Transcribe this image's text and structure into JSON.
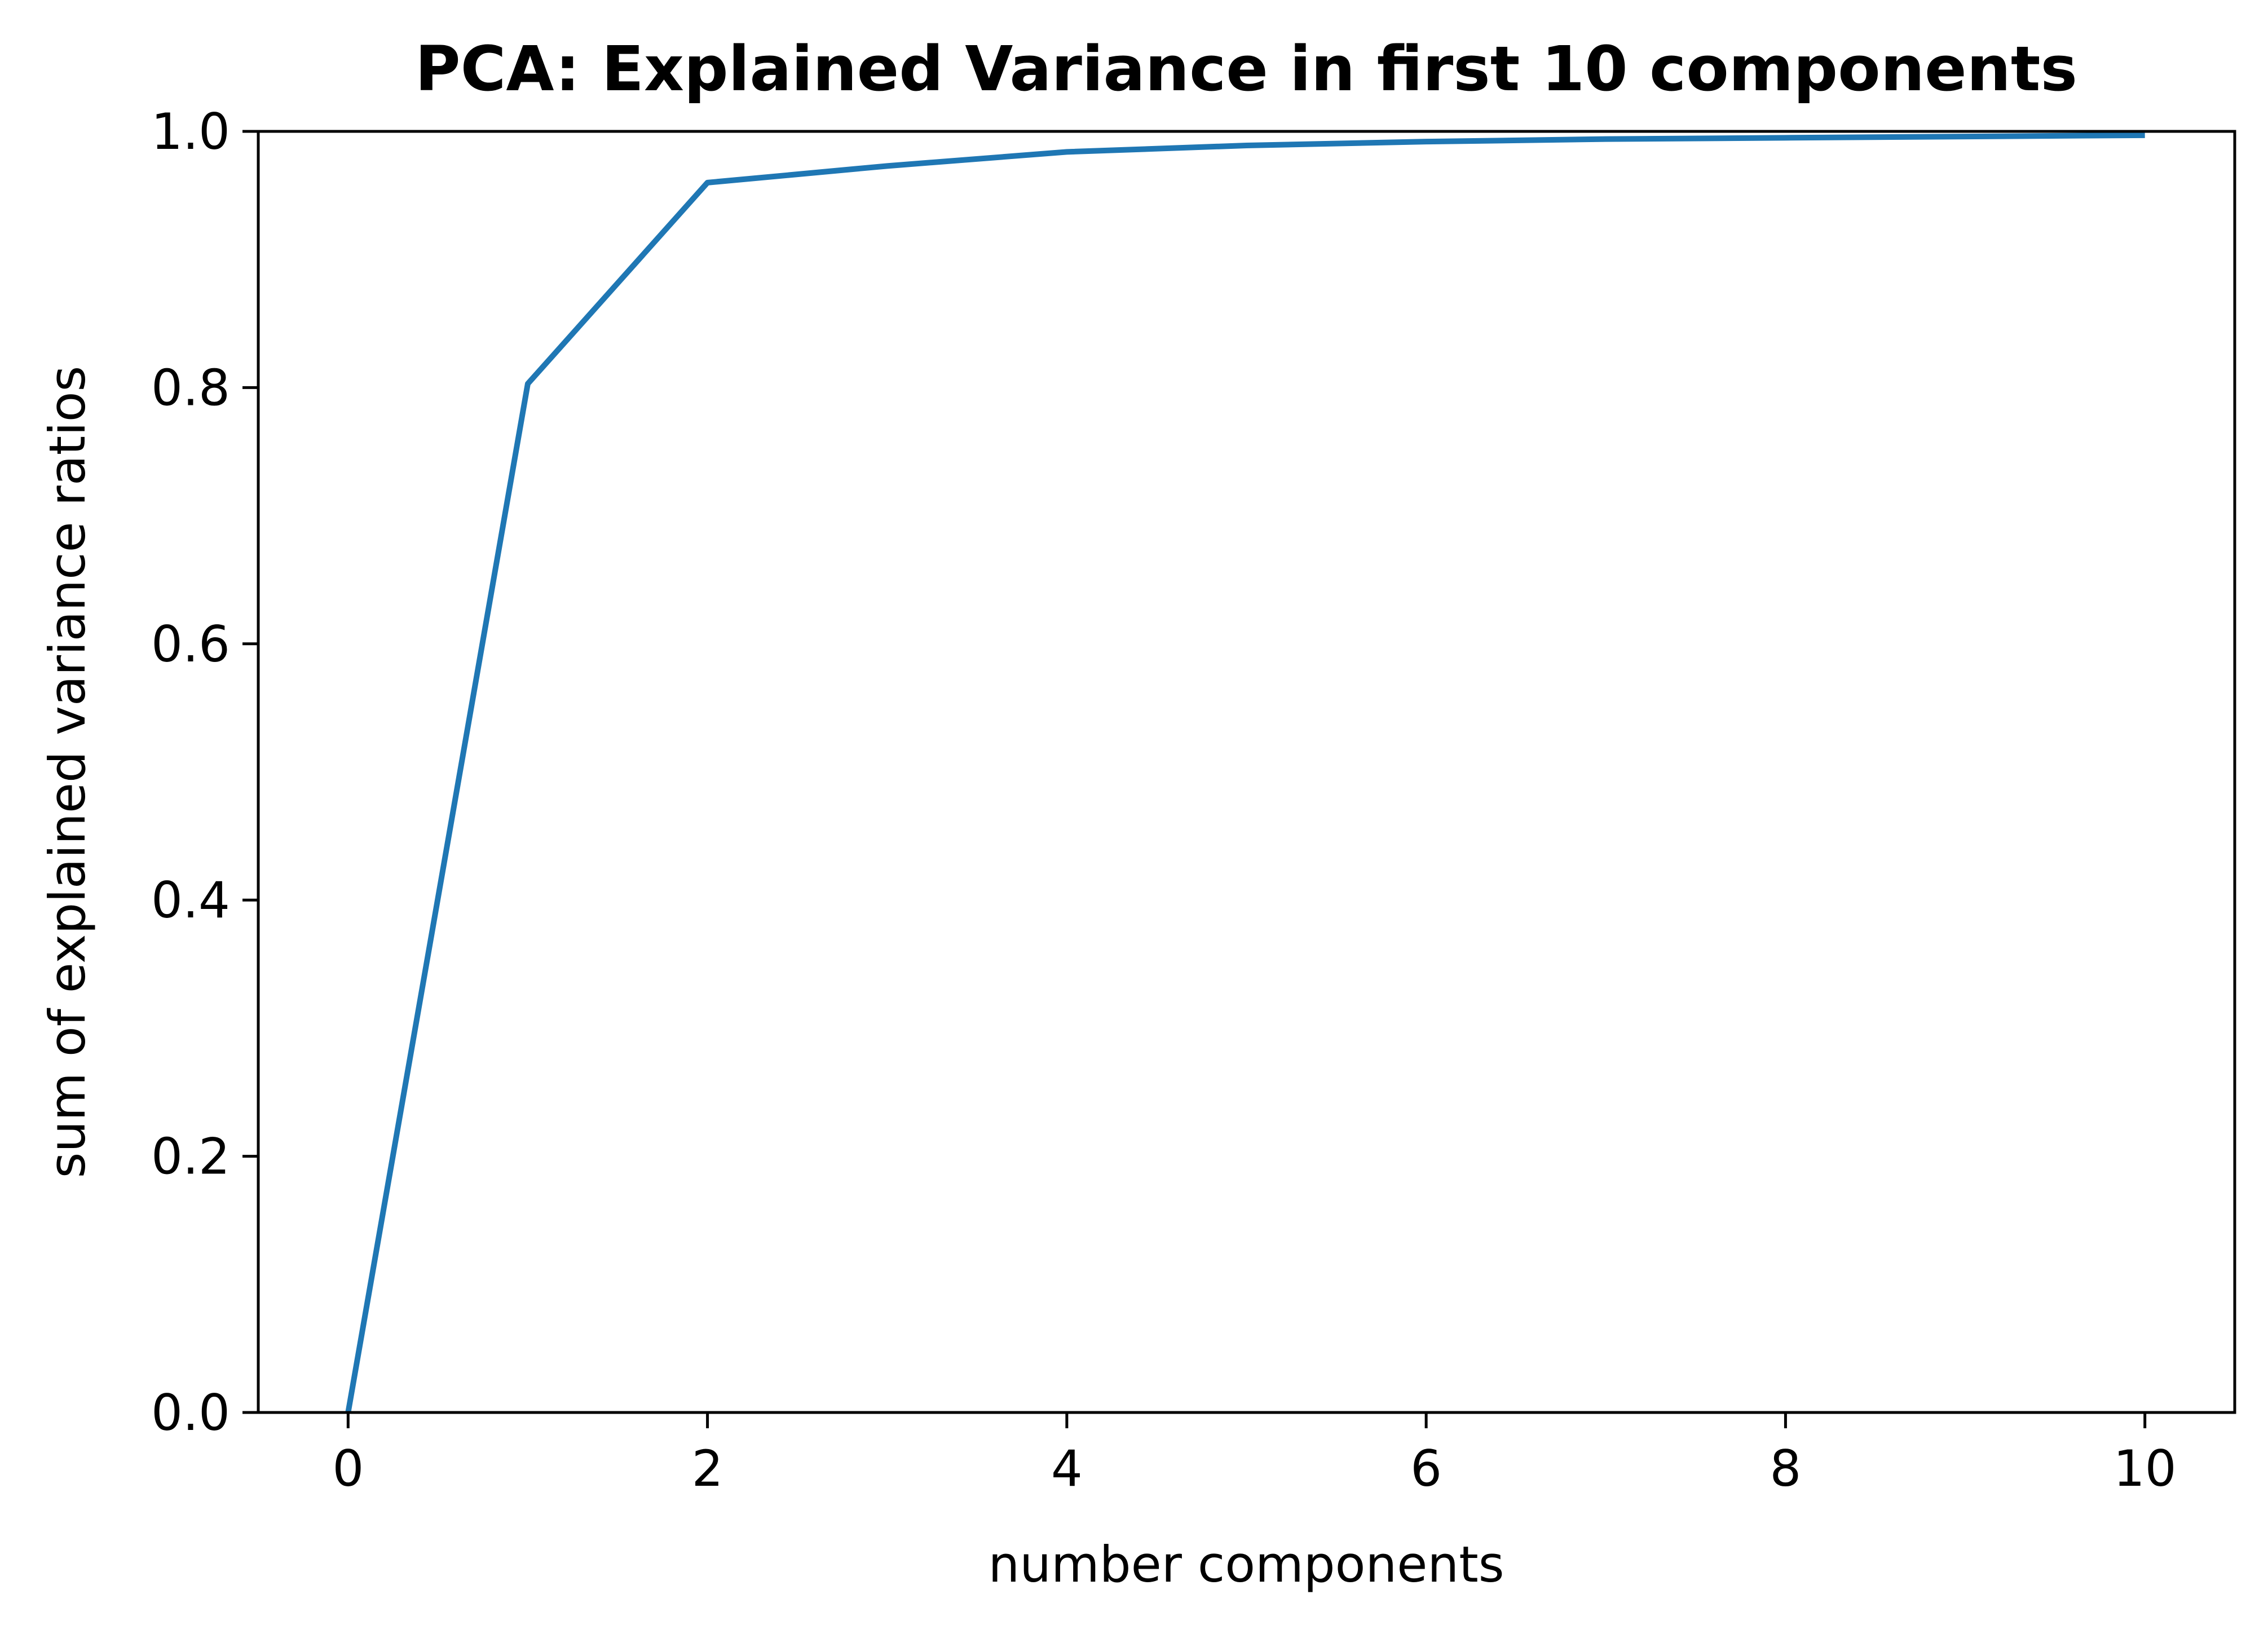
{
  "chart_data": {
    "type": "line",
    "title": "PCA: Explained Variance in first 10 components",
    "xlabel": "number components",
    "ylabel": "sum of explained variance ratios",
    "xlim": [
      -0.5,
      10.5
    ],
    "ylim": [
      0.0,
      1.0
    ],
    "x_ticks": [
      0,
      2,
      4,
      6,
      8,
      10
    ],
    "x_tick_labels": [
      "0",
      "2",
      "4",
      "6",
      "8",
      "10"
    ],
    "y_ticks": [
      0.0,
      0.2,
      0.4,
      0.6,
      0.8,
      1.0
    ],
    "y_tick_labels": [
      "0.0",
      "0.2",
      "0.4",
      "0.6",
      "0.8",
      "1.0"
    ],
    "grid": false,
    "series": [
      {
        "color": "#1f77b4",
        "x": [
          0,
          1,
          2,
          3,
          4,
          5,
          6,
          7,
          8,
          9,
          10
        ],
        "values": [
          0.0,
          0.803,
          0.96,
          0.973,
          0.984,
          0.989,
          0.992,
          0.994,
          0.995,
          0.996,
          0.997
        ]
      }
    ]
  }
}
